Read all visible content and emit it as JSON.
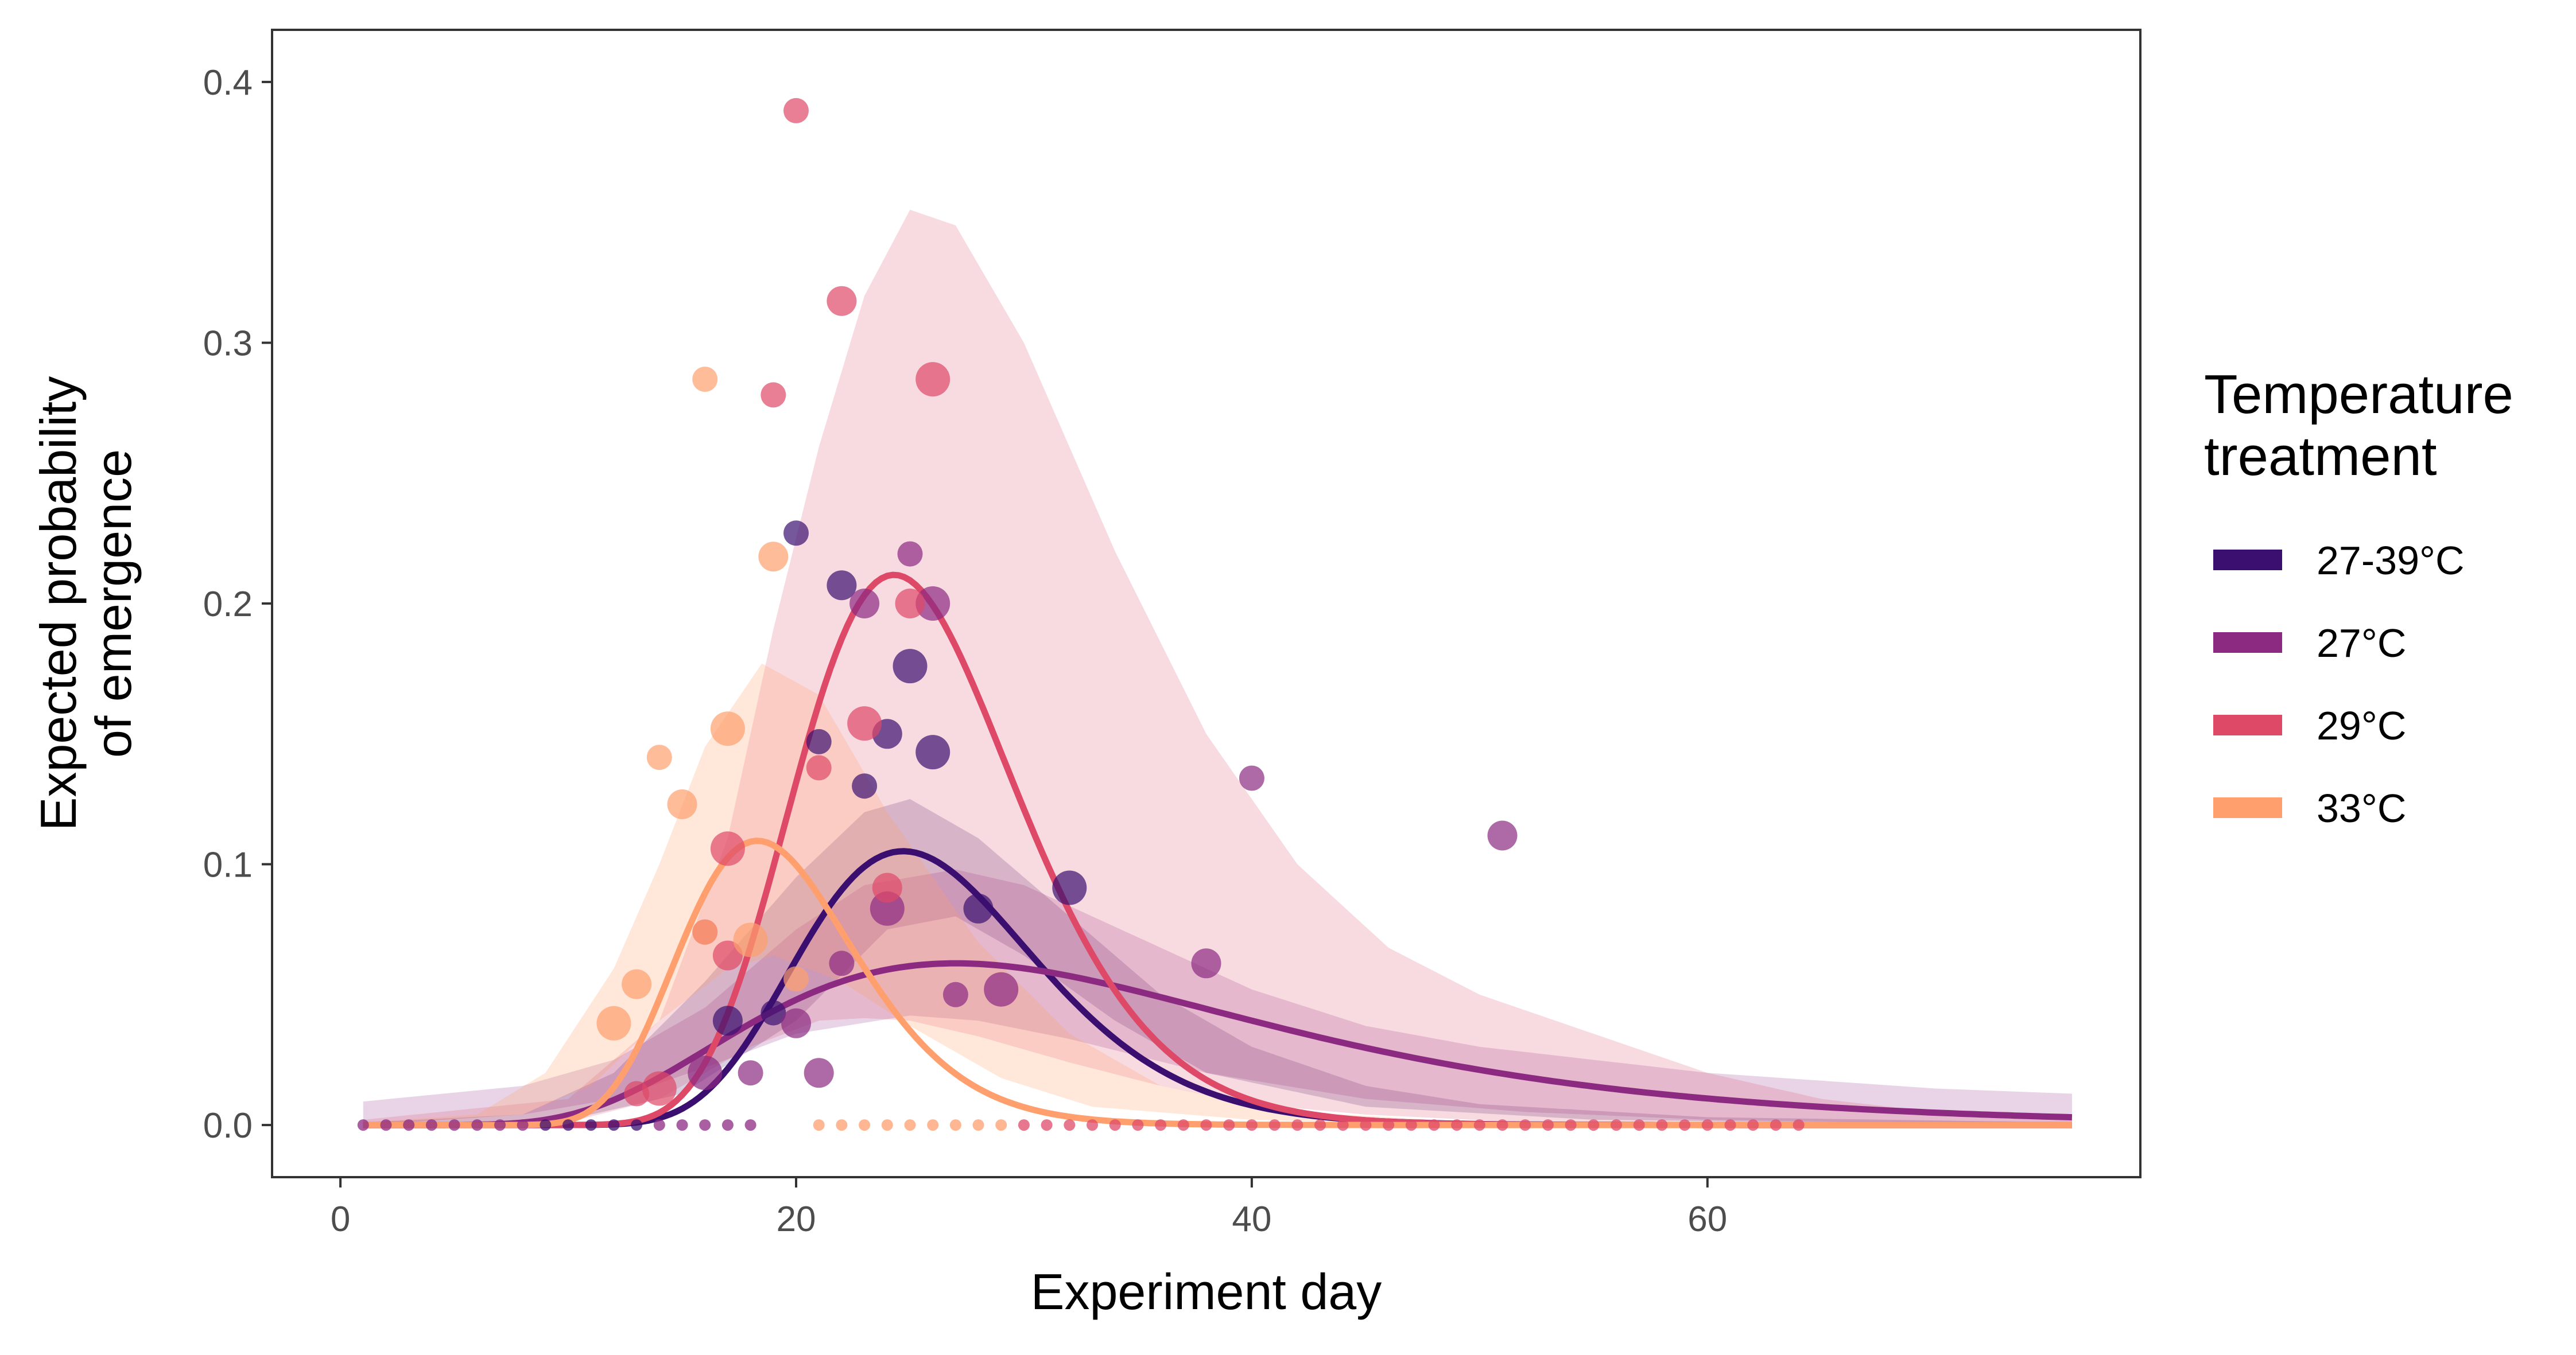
{
  "chart_data": {
    "type": "line",
    "xlabel": "Experiment day",
    "ylabel_lines": [
      "Expected probability",
      "of emergence"
    ],
    "xlim": [
      -3,
      79
    ],
    "ylim": [
      -0.02,
      0.42
    ],
    "xticks": [
      0,
      20,
      40,
      60
    ],
    "yticks": [
      0.0,
      0.1,
      0.2,
      0.3,
      0.4
    ],
    "ytick_labels": [
      "0.0",
      "0.1",
      "0.2",
      "0.3",
      "0.4"
    ],
    "grid": false,
    "legend": {
      "title_lines": [
        "Temperature",
        "treatment"
      ],
      "placement": "right"
    },
    "series": [
      {
        "name": "27-39°C",
        "color": "#3b0f70",
        "ribbon_opacity": 0.2,
        "x_range": [
          1,
          76
        ],
        "curve": {
          "kind": "lognormal",
          "peak_day": 24.7,
          "peak": 0.105,
          "sigma": 0.21
        },
        "ribbon": {
          "upper": [
            [
              1,
              0.001
            ],
            [
              8,
              0.004
            ],
            [
              12,
              0.02
            ],
            [
              16,
              0.055
            ],
            [
              20,
              0.095
            ],
            [
              23,
              0.12
            ],
            [
              25,
              0.125
            ],
            [
              28,
              0.11
            ],
            [
              32,
              0.08
            ],
            [
              36,
              0.05
            ],
            [
              40,
              0.03
            ],
            [
              45,
              0.015
            ],
            [
              50,
              0.008
            ],
            [
              60,
              0.003
            ],
            [
              76,
              0.001
            ]
          ],
          "lower": [
            [
              1,
              0.0
            ],
            [
              10,
              0.002
            ],
            [
              15,
              0.012
            ],
            [
              20,
              0.04
            ],
            [
              24,
              0.075
            ],
            [
              27,
              0.08
            ],
            [
              30,
              0.065
            ],
            [
              34,
              0.04
            ],
            [
              38,
              0.02
            ],
            [
              45,
              0.007
            ],
            [
              55,
              0.002
            ],
            [
              76,
              0.0
            ]
          ]
        },
        "points": [
          [
            20,
            0.227
          ],
          [
            22,
            0.207
          ],
          [
            25,
            0.176
          ],
          [
            21,
            0.147
          ],
          [
            24,
            0.15
          ],
          [
            26,
            0.143
          ],
          [
            23,
            0.13
          ],
          [
            28,
            0.083
          ],
          [
            32,
            0.091
          ],
          [
            19,
            0.043
          ],
          [
            17,
            0.04
          ]
        ]
      },
      {
        "name": "27°C",
        "color": "#8c2981",
        "ribbon_opacity": 0.2,
        "x_range": [
          1,
          76
        ],
        "curve": {
          "kind": "lognormal",
          "peak_day": 27.0,
          "peak": 0.062,
          "sigma": 0.42
        },
        "ribbon": {
          "upper": [
            [
              1,
              0.009
            ],
            [
              8,
              0.015
            ],
            [
              12,
              0.025
            ],
            [
              16,
              0.045
            ],
            [
              20,
              0.075
            ],
            [
              23,
              0.092
            ],
            [
              27,
              0.098
            ],
            [
              30,
              0.092
            ],
            [
              35,
              0.072
            ],
            [
              40,
              0.052
            ],
            [
              45,
              0.038
            ],
            [
              50,
              0.03
            ],
            [
              60,
              0.02
            ],
            [
              70,
              0.014
            ],
            [
              76,
              0.012
            ]
          ],
          "lower": [
            [
              1,
              0.0
            ],
            [
              8,
              0.004
            ],
            [
              12,
              0.01
            ],
            [
              16,
              0.022
            ],
            [
              20,
              0.035
            ],
            [
              25,
              0.042
            ],
            [
              28,
              0.04
            ],
            [
              32,
              0.033
            ],
            [
              38,
              0.02
            ],
            [
              45,
              0.01
            ],
            [
              52,
              0.005
            ],
            [
              60,
              0.002
            ],
            [
              76,
              0.0
            ]
          ]
        },
        "points": [
          [
            25,
            0.219
          ],
          [
            23,
            0.2
          ],
          [
            26,
            0.2
          ],
          [
            40,
            0.133
          ],
          [
            51,
            0.111
          ],
          [
            24,
            0.083
          ],
          [
            22,
            0.062
          ],
          [
            38,
            0.062
          ],
          [
            29,
            0.052
          ],
          [
            27,
            0.05
          ],
          [
            20,
            0.039
          ],
          [
            16,
            0.02
          ],
          [
            18,
            0.02
          ],
          [
            21,
            0.02
          ]
        ]
      },
      {
        "name": "29°C",
        "color": "#de4968",
        "ribbon_opacity": 0.2,
        "x_range": [
          1,
          76
        ],
        "curve": {
          "kind": "lognormal",
          "peak_day": 24.3,
          "peak": 0.211,
          "sigma": 0.2
        },
        "ribbon": {
          "upper": [
            [
              1,
              0.002
            ],
            [
              10,
              0.01
            ],
            [
              14,
              0.04
            ],
            [
              17,
              0.11
            ],
            [
              19,
              0.19
            ],
            [
              21,
              0.26
            ],
            [
              23,
              0.318
            ],
            [
              25,
              0.351
            ],
            [
              27,
              0.345
            ],
            [
              30,
              0.3
            ],
            [
              34,
              0.22
            ],
            [
              38,
              0.15
            ],
            [
              42,
              0.1
            ],
            [
              46,
              0.068
            ],
            [
              50,
              0.05
            ],
            [
              55,
              0.035
            ],
            [
              60,
              0.02
            ],
            [
              65,
              0.01
            ],
            [
              70,
              0.005
            ],
            [
              76,
              0.003
            ]
          ],
          "lower": [
            [
              1,
              0.0
            ],
            [
              10,
              0.001
            ],
            [
              14,
              0.01
            ],
            [
              18,
              0.03
            ],
            [
              21,
              0.04
            ],
            [
              23,
              0.041
            ],
            [
              25,
              0.04
            ],
            [
              28,
              0.034
            ],
            [
              32,
              0.024
            ],
            [
              36,
              0.015
            ],
            [
              40,
              0.008
            ],
            [
              45,
              0.004
            ],
            [
              52,
              0.001
            ],
            [
              76,
              0.0
            ]
          ]
        },
        "points": [
          [
            20,
            0.389
          ],
          [
            22,
            0.316
          ],
          [
            26,
            0.286
          ],
          [
            19,
            0.28
          ],
          [
            25,
            0.2
          ],
          [
            23,
            0.154
          ],
          [
            21,
            0.137
          ],
          [
            24,
            0.091
          ],
          [
            17,
            0.106
          ],
          [
            16,
            0.074
          ],
          [
            17,
            0.065
          ],
          [
            14,
            0.014
          ],
          [
            13,
            0.012
          ]
        ]
      },
      {
        "name": "33°C",
        "color": "#fe9f6d",
        "ribbon_opacity": 0.25,
        "x_range": [
          1,
          76
        ],
        "curve": {
          "kind": "lognormal",
          "peak_day": 18.3,
          "peak": 0.109,
          "sigma": 0.21
        },
        "ribbon": {
          "upper": [
            [
              1,
              0.001
            ],
            [
              6,
              0.004
            ],
            [
              9,
              0.02
            ],
            [
              12,
              0.06
            ],
            [
              14,
              0.1
            ],
            [
              16,
              0.145
            ],
            [
              18.5,
              0.177
            ],
            [
              21,
              0.165
            ],
            [
              24,
              0.12
            ],
            [
              28,
              0.07
            ],
            [
              32,
              0.035
            ],
            [
              36,
              0.015
            ],
            [
              42,
              0.005
            ],
            [
              50,
              0.001
            ],
            [
              76,
              0.0
            ]
          ],
          "lower": [
            [
              1,
              0.0
            ],
            [
              8,
              0.004
            ],
            [
              11,
              0.015
            ],
            [
              14,
              0.04
            ],
            [
              17,
              0.06
            ],
            [
              19,
              0.065
            ],
            [
              22,
              0.055
            ],
            [
              25,
              0.038
            ],
            [
              29,
              0.018
            ],
            [
              33,
              0.007
            ],
            [
              40,
              0.002
            ],
            [
              50,
              0.0
            ],
            [
              76,
              0.0
            ]
          ]
        },
        "points": [
          [
            16,
            0.286
          ],
          [
            19,
            0.218
          ],
          [
            17,
            0.152
          ],
          [
            14,
            0.141
          ],
          [
            15,
            0.123
          ],
          [
            18,
            0.071
          ],
          [
            20,
            0.056
          ],
          [
            13,
            0.054
          ],
          [
            12,
            0.039
          ],
          [
            16,
            0.074
          ]
        ]
      }
    ],
    "baseline_points": {
      "y": 0.0,
      "x_start": 1,
      "x_end": 64,
      "gap": [
        19,
        21
      ]
    }
  }
}
